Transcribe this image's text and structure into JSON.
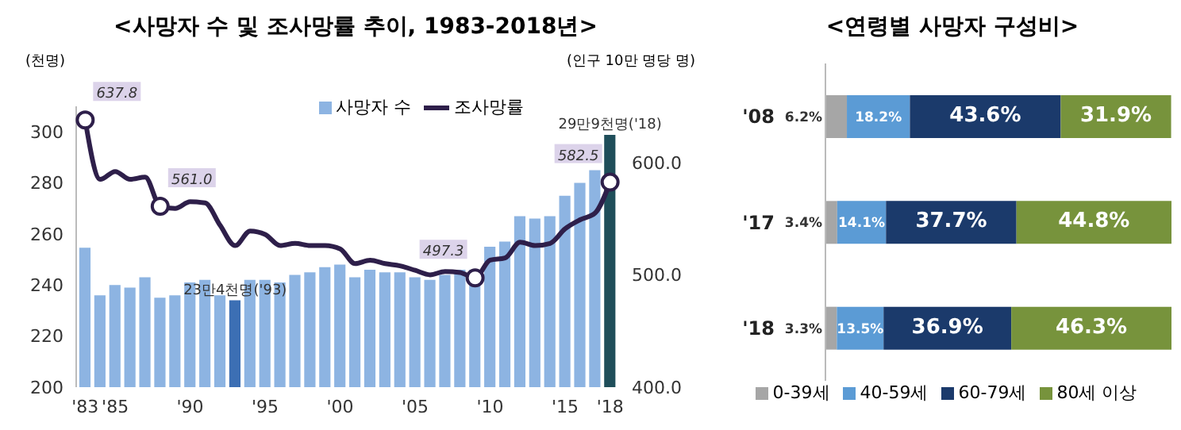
{
  "chart_data": [
    {
      "type": "bar",
      "title": "<사망자 수 및 조사망률 추이, 1983-2018년>",
      "ylabel": "(천명)",
      "y2label": "(인구 10만 명당 명)",
      "x": [
        1983,
        1984,
        1985,
        1986,
        1987,
        1988,
        1989,
        1990,
        1991,
        1992,
        1993,
        1994,
        1995,
        1996,
        1997,
        1998,
        1999,
        2000,
        2001,
        2002,
        2003,
        2004,
        2005,
        2006,
        2007,
        2008,
        2009,
        2010,
        2011,
        2012,
        2013,
        2014,
        2015,
        2016,
        2017,
        2018
      ],
      "xlim": [
        1982.4,
        2018.6
      ],
      "xticks": [
        {
          "value": 1983,
          "label": "'83"
        },
        {
          "value": 1985,
          "label": "'85"
        },
        {
          "value": 1990,
          "label": "'90"
        },
        {
          "value": 1995,
          "label": "'95"
        },
        {
          "value": 2000,
          "label": "'00"
        },
        {
          "value": 2005,
          "label": "'05"
        },
        {
          "value": 2010,
          "label": "'10"
        },
        {
          "value": 2015,
          "label": "'15"
        },
        {
          "value": 2018,
          "label": "'18"
        }
      ],
      "ylim": [
        200,
        310
      ],
      "yticks": [
        200,
        220,
        240,
        260,
        280,
        300
      ],
      "y2lim": [
        400,
        650
      ],
      "y2ticks": [
        {
          "value": 400,
          "label": "400.0"
        },
        {
          "value": 500,
          "label": "500.0"
        },
        {
          "value": 600,
          "label": "600.0"
        }
      ],
      "series": [
        {
          "name": "사망자 수",
          "type": "bar",
          "color": "#8db4e2",
          "colors": [
            "#8db4e2",
            "#8db4e2",
            "#8db4e2",
            "#8db4e2",
            "#8db4e2",
            "#8db4e2",
            "#8db4e2",
            "#8db4e2",
            "#8db4e2",
            "#8db4e2",
            "#3c6fb4",
            "#8db4e2",
            "#8db4e2",
            "#8db4e2",
            "#8db4e2",
            "#8db4e2",
            "#8db4e2",
            "#8db4e2",
            "#8db4e2",
            "#8db4e2",
            "#8db4e2",
            "#8db4e2",
            "#8db4e2",
            "#8db4e2",
            "#8db4e2",
            "#8db4e2",
            "#8db4e2",
            "#8db4e2",
            "#8db4e2",
            "#8db4e2",
            "#8db4e2",
            "#8db4e2",
            "#8db4e2",
            "#8db4e2",
            "#8db4e2",
            "#1f4e5a"
          ],
          "values": [
            254.6,
            236,
            240,
            239,
            243,
            235,
            236,
            241,
            242,
            236,
            234,
            242,
            242,
            241,
            244,
            245,
            247,
            248,
            243,
            246,
            245,
            245,
            243,
            242,
            244,
            246,
            246,
            255,
            257,
            267,
            266,
            267,
            275,
            280,
            285,
            298.8
          ]
        },
        {
          "name": "조사망률",
          "type": "line",
          "axis": "y2",
          "color": "#2e1f4a",
          "values": [
            637.8,
            585,
            592,
            585,
            587,
            561.0,
            559,
            565,
            564,
            544,
            526,
            539,
            536,
            526,
            528,
            526,
            526,
            523,
            510,
            513,
            510,
            508,
            504,
            500,
            503,
            502,
            497.3,
            513,
            515,
            529,
            526,
            528,
            541,
            549,
            555,
            582.5
          ],
          "value_labels": [
            "637.8",
            null,
            null,
            null,
            null,
            "561.0",
            null,
            null,
            null,
            null,
            null,
            null,
            null,
            null,
            null,
            null,
            null,
            null,
            null,
            null,
            null,
            null,
            null,
            null,
            null,
            null,
            "497.3",
            null,
            null,
            null,
            null,
            null,
            null,
            null,
            null,
            "582.5"
          ]
        }
      ],
      "annotations": [
        {
          "text": "23만4천명('93)",
          "x": 1993,
          "y": 234
        },
        {
          "text": "29만9천명('18)",
          "x": 2018,
          "y": 298.8
        }
      ],
      "legend": "top right",
      "marker": "none",
      "line_style": "solid"
    },
    {
      "type": "bar",
      "title": "<연령별 사망자 구성비>",
      "orientation": "horizontal",
      "stacked": true,
      "categories": [
        "'08",
        "'17",
        "'18"
      ],
      "tick_labels": "y",
      "legend": "bottom",
      "series": [
        {
          "name": "0-39세",
          "color": "#a6a6a6",
          "values": [
            6.2,
            3.4,
            3.3
          ],
          "value_labels": [
            "6.2%",
            "3.4%",
            "3.3%"
          ]
        },
        {
          "name": "40-59세",
          "color": "#5b9bd5",
          "values": [
            18.2,
            14.1,
            13.5
          ],
          "value_labels": [
            "18.2%",
            "14.1%",
            "13.5%"
          ]
        },
        {
          "name": "60-79세",
          "color": "#1b3a6b",
          "values": [
            43.6,
            37.7,
            36.9
          ],
          "value_labels": [
            "43.6%",
            "37.7%",
            "36.9%"
          ]
        },
        {
          "name": "80세 이상",
          "color": "#77933c",
          "values": [
            31.9,
            44.8,
            46.3
          ],
          "value_labels": [
            "31.9%",
            "44.8%",
            "46.3%"
          ]
        }
      ]
    }
  ]
}
